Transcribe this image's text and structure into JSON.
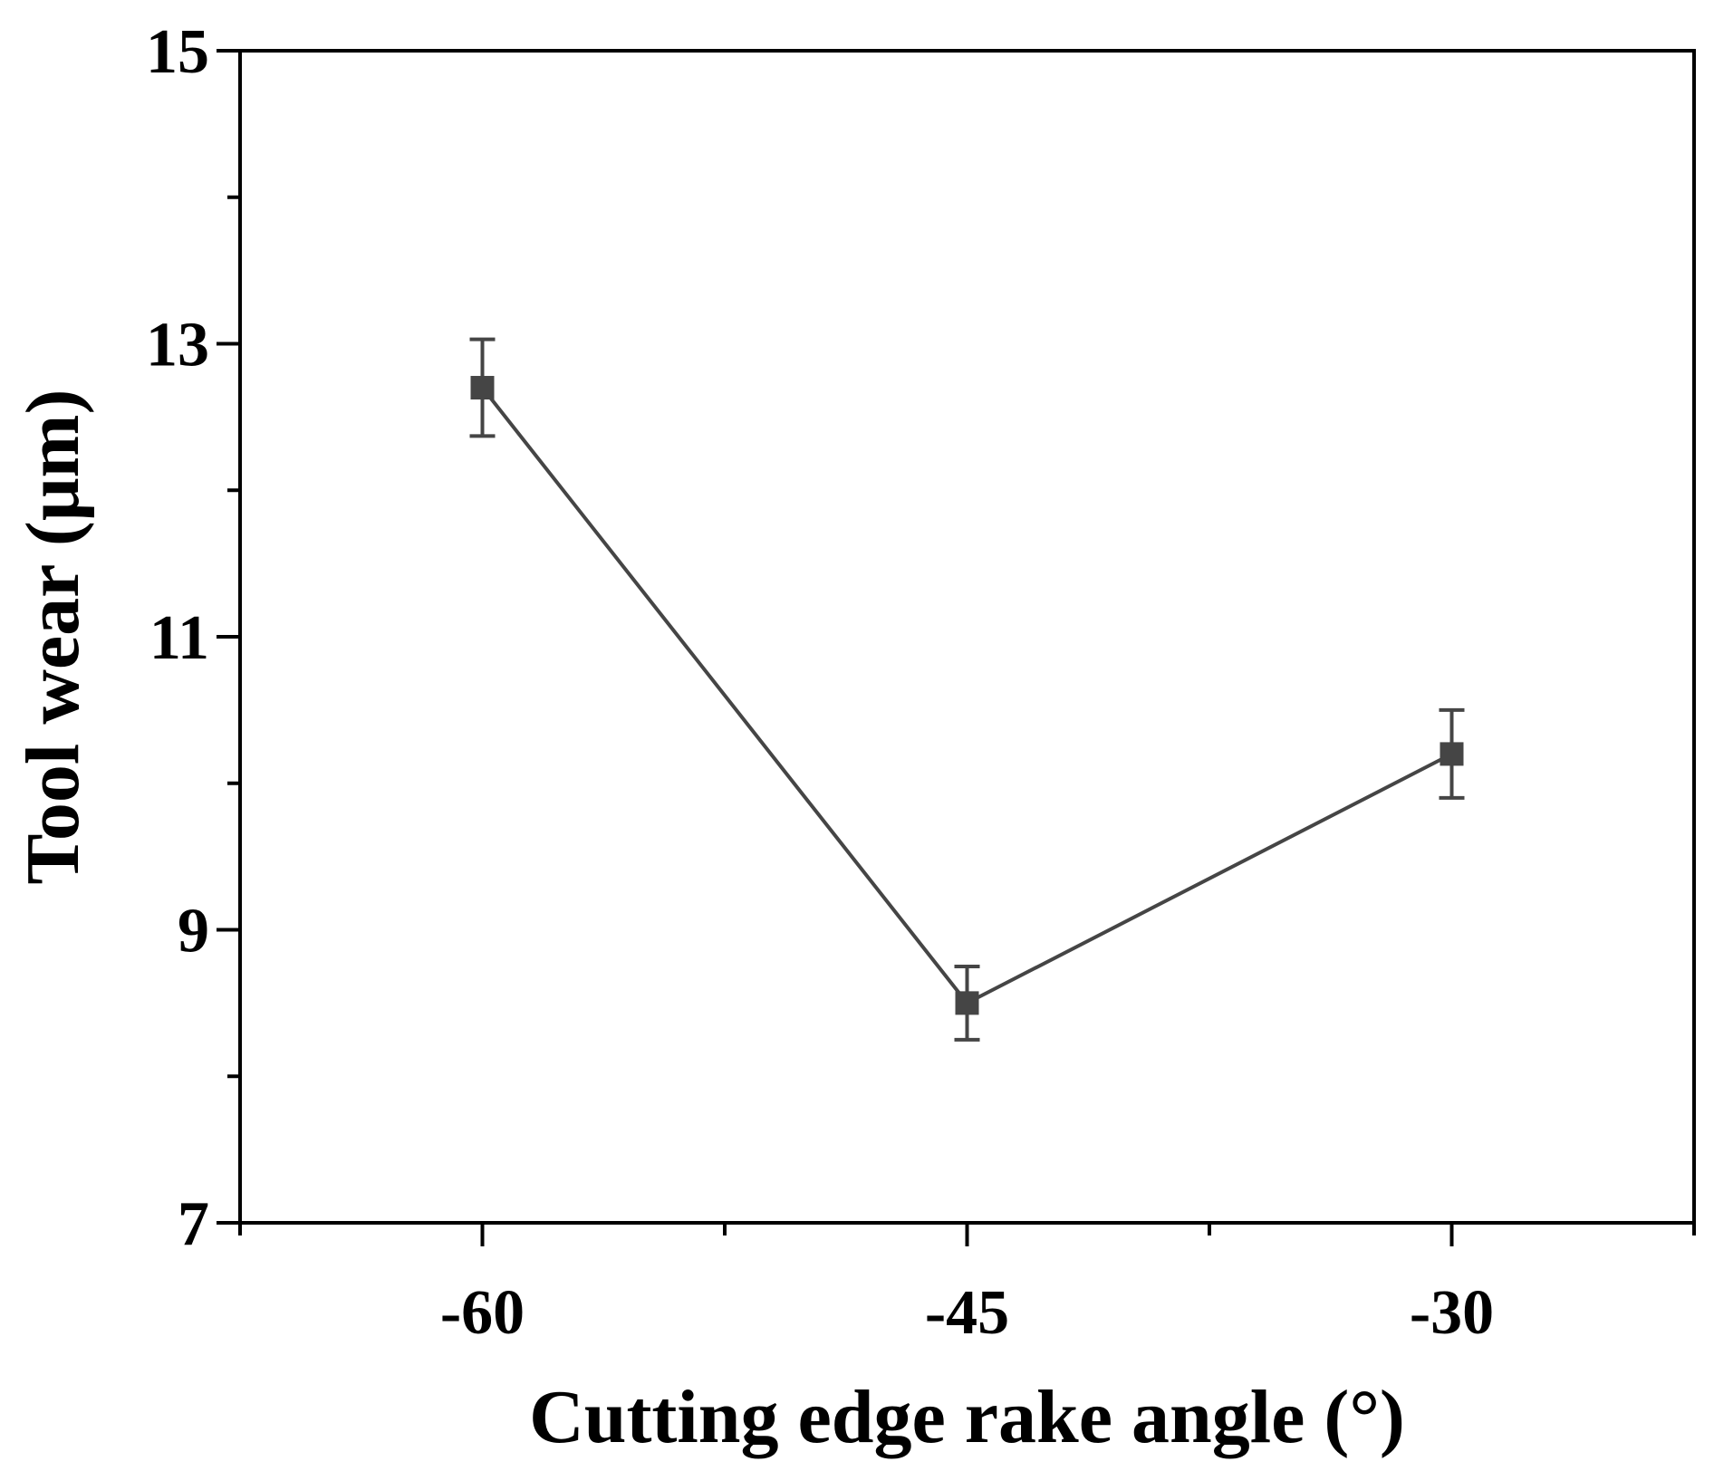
{
  "chart_data": {
    "type": "line",
    "xlabel": "Cutting edge rake angle (°)",
    "ylabel": "Tool wear (μm)",
    "xlim": [
      -67.5,
      -22.5
    ],
    "ylim": [
      7,
      15
    ],
    "x_ticks": [
      -60,
      -45,
      -30
    ],
    "x_tick_labels": [
      "-60",
      "-45",
      "-30"
    ],
    "x_minor_ticks": [
      -67.5,
      -52.5,
      -37.5,
      -22.5
    ],
    "y_ticks": [
      7,
      9,
      11,
      13,
      15
    ],
    "y_tick_labels": [
      "7",
      "9",
      "11",
      "13",
      "15"
    ],
    "y_minor_ticks": [
      8,
      10,
      12,
      14
    ],
    "grid": false,
    "legend": "none",
    "series": [
      {
        "x": [
          -60,
          -45,
          -30
        ],
        "y": [
          12.7,
          8.5,
          10.2
        ],
        "error": [
          0.33,
          0.25,
          0.3
        ],
        "color": "#454545",
        "marker": "square"
      }
    ]
  }
}
